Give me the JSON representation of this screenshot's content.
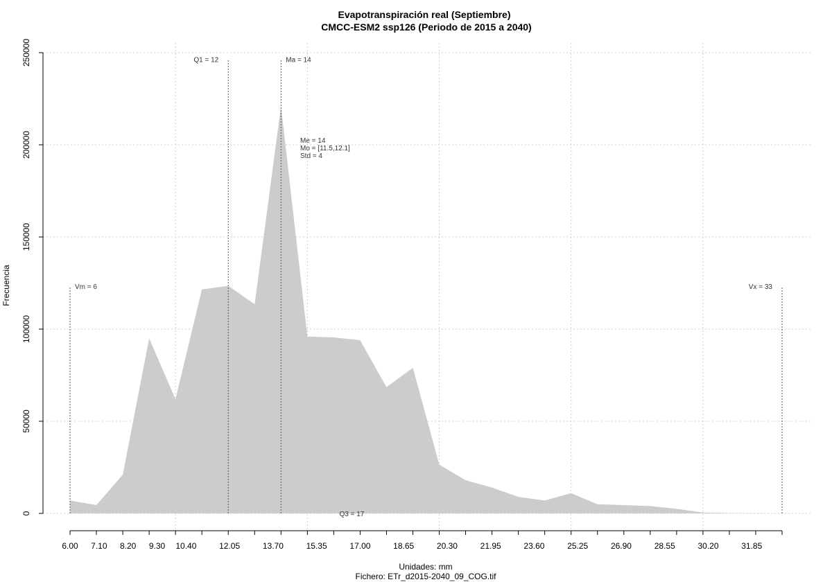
{
  "chart_data": {
    "type": "area",
    "title": "Evapotranspiración real (Septiembre)",
    "subtitle": "CMCC-ESM2 ssp126 (Periodo de 2015 a 2040)",
    "xlabel": "Unidades: mm",
    "caption": "Fichero: ETr_d2015-2040_09_COG.tif",
    "ylabel": "Frecuencia",
    "xlim": [
      6.0,
      33.0
    ],
    "ylim": [
      0,
      250000
    ],
    "x_ticks": [
      6.0,
      7.1,
      8.2,
      9.3,
      10.4,
      12.05,
      13.7,
      15.35,
      17.0,
      18.65,
      20.3,
      21.95,
      23.6,
      25.25,
      26.9,
      28.55,
      30.2,
      31.85
    ],
    "x_tick_labels": [
      "6.00",
      "7.10",
      "8.20",
      "9.30",
      "10.40",
      "12.05",
      "13.70",
      "15.35",
      "17.00",
      "18.65",
      "20.30",
      "21.95",
      "23.60",
      "25.25",
      "26.90",
      "28.55",
      "30.20",
      "31.85"
    ],
    "y_ticks": [
      0,
      50000,
      100000,
      150000,
      200000,
      250000
    ],
    "y_tick_labels": [
      "0",
      "50000",
      "100000",
      "150000",
      "200000",
      "250000"
    ],
    "grid": true,
    "fill_color": "#cccccc",
    "x": [
      6.0,
      7.0,
      8.0,
      9.0,
      10.0,
      11.0,
      12.0,
      13.0,
      14.0,
      15.0,
      16.0,
      17.0,
      18.0,
      19.0,
      20.0,
      21.0,
      22.0,
      23.0,
      24.0,
      25.0,
      26.0,
      27.0,
      28.0,
      29.0,
      30.0,
      31.0,
      32.0,
      33.0
    ],
    "values": [
      7000,
      4500,
      21000,
      95000,
      62000,
      121500,
      123500,
      113500,
      221000,
      96000,
      95500,
      94000,
      68500,
      79000,
      26500,
      18000,
      14000,
      9000,
      7000,
      11000,
      5000,
      4500,
      4000,
      2500,
      500,
      200,
      100,
      0
    ],
    "vlines": [
      {
        "x": 6,
        "label": "Vm = 6",
        "label_y": 123000,
        "anchor": "start"
      },
      {
        "x": 12,
        "label": "Q1 = 12",
        "label_y": 246000,
        "anchor": "end"
      },
      {
        "x": 14,
        "label": "Ma = 14",
        "label_y": 246000,
        "anchor": "start"
      },
      {
        "x": 33,
        "label": "Vx = 33",
        "label_y": 123000,
        "anchor": "end"
      }
    ],
    "q3_label": "Q3 = 17",
    "q3_x": 17,
    "stats": [
      "Me = 14",
      "Mo = [11.5,12.1]",
      "Std = 4"
    ]
  }
}
